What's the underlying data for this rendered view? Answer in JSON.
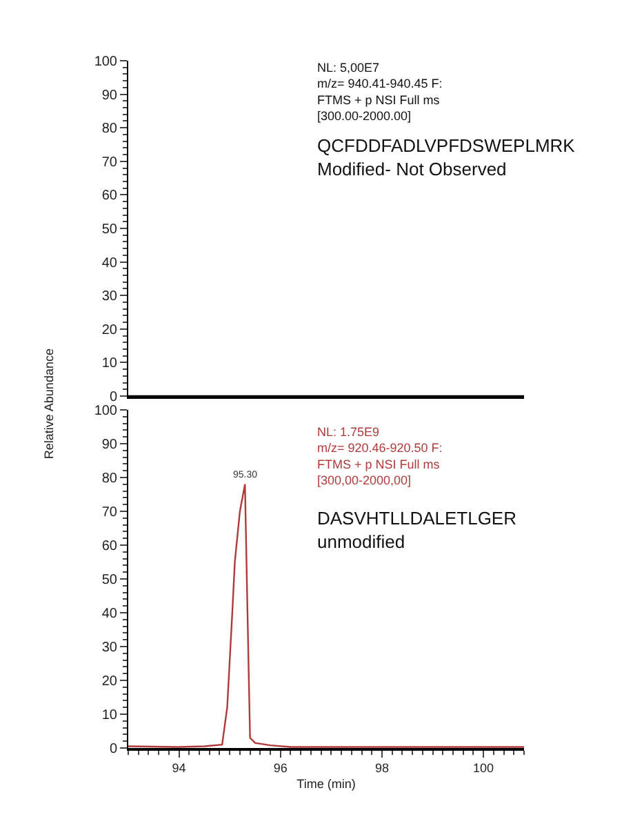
{
  "chart_data": [
    {
      "type": "line",
      "x": [
        93.0,
        100.8
      ],
      "series": [
        {
          "color": "#000000",
          "values": [
            0,
            0
          ]
        }
      ],
      "xlim": [
        93.0,
        100.8
      ],
      "ylim": [
        0,
        100
      ],
      "yticks": [
        0,
        10,
        20,
        30,
        40,
        50,
        60,
        70,
        80,
        90,
        100
      ],
      "tick_labels": "y",
      "annotations": [
        "NL: 5,00E7\nm/z= 940.41-940.45 F:\nFTMS + p NSI Full ms\n[300.00-2000.00]",
        "QCFDDFADLVPFDSWEPLMRK\nModified- Not Observed"
      ]
    },
    {
      "type": "line",
      "x": [
        93.0,
        94.0,
        94.5,
        94.85,
        94.95,
        95.05,
        95.1,
        95.2,
        95.3,
        95.35,
        95.4,
        95.5,
        95.8,
        96.2,
        100.8
      ],
      "series": [
        {
          "color": "#b03a3a",
          "values": [
            0.5,
            0.3,
            0.5,
            1,
            12,
            40,
            55,
            70,
            78,
            40,
            3,
            1.5,
            0.8,
            0.3,
            0.3
          ]
        }
      ],
      "xlim": [
        93.0,
        100.8
      ],
      "xticks": [
        94,
        96,
        98,
        100
      ],
      "ylim": [
        0,
        100
      ],
      "yticks": [
        0,
        10,
        20,
        30,
        40,
        50,
        60,
        70,
        80,
        90,
        100
      ],
      "xlabel": "Time (min)",
      "ylabel": "Relative Abundance",
      "annotations": [
        "NL: 1.75E9\nm/z= 920.46-920.50 F:\nFTMS + p NSI Full ms\n[300,00-2000,00]",
        "DASVHTLLDALETLGER\nunmodified",
        {
          "text": "95.30",
          "x": 95.3,
          "y": 78
        }
      ]
    }
  ]
}
